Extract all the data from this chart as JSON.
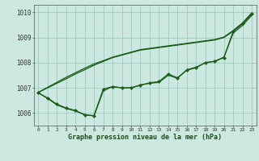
{
  "title": "Graphe pression niveau de la mer (hPa)",
  "xlabel_hours": [
    0,
    1,
    2,
    3,
    4,
    5,
    6,
    7,
    8,
    9,
    10,
    11,
    12,
    13,
    14,
    15,
    16,
    17,
    18,
    19,
    20,
    21,
    22,
    23
  ],
  "ylim": [
    1005.5,
    1010.3
  ],
  "yticks": [
    1006,
    1007,
    1008,
    1009,
    1010
  ],
  "bg_color": "#cce8e0",
  "grid_color": "#99ccc0",
  "line_color": "#1a5c1a",
  "curves_with_markers": [
    [
      1006.8,
      1006.6,
      1006.35,
      1006.2,
      1006.1,
      1005.92,
      1005.9,
      1006.95,
      1007.05,
      1007.0,
      1007.0,
      1007.1,
      1007.2,
      1007.25,
      1007.55,
      1007.4,
      1007.7,
      1007.8,
      1008.0,
      1008.05,
      1008.2,
      1009.25,
      1009.55,
      1009.95
    ]
  ],
  "curves_plain": [
    [
      1006.8,
      1006.58,
      1006.32,
      1006.18,
      1006.08,
      1005.94,
      1005.88,
      1006.88,
      1007.05,
      1007.0,
      1007.0,
      1007.12,
      1007.18,
      1007.22,
      1007.5,
      1007.38,
      1007.72,
      1007.82,
      1008.0,
      1008.06,
      1008.22,
      1009.18,
      1009.48,
      1009.88
    ],
    [
      1006.82,
      1007.0,
      1007.18,
      1007.36,
      1007.55,
      1007.72,
      1007.9,
      1008.05,
      1008.2,
      1008.3,
      1008.4,
      1008.5,
      1008.55,
      1008.6,
      1008.65,
      1008.7,
      1008.75,
      1008.8,
      1008.85,
      1008.9,
      1009.0,
      1009.25,
      1009.55,
      1009.95
    ],
    [
      1006.82,
      1007.02,
      1007.22,
      1007.42,
      1007.6,
      1007.78,
      1007.95,
      1008.08,
      1008.22,
      1008.32,
      1008.42,
      1008.52,
      1008.57,
      1008.62,
      1008.67,
      1008.72,
      1008.77,
      1008.82,
      1008.87,
      1008.92,
      1009.02,
      1009.28,
      1009.58,
      1009.98
    ]
  ],
  "figsize": [
    3.2,
    2.0
  ],
  "dpi": 100
}
